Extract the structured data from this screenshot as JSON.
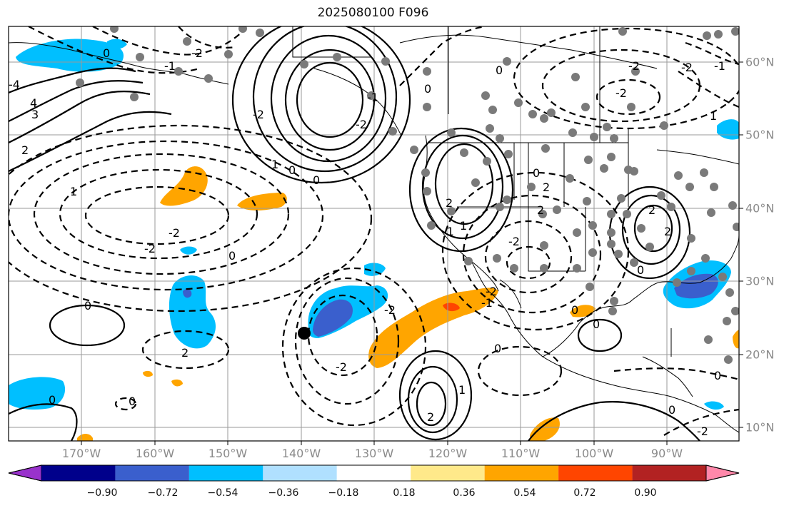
{
  "title": "2025080100 F096",
  "longitude_labels": [
    "170°W",
    "160°W",
    "150°W",
    "140°W",
    "130°W",
    "120°W",
    "110°W",
    "100°W",
    "90°W"
  ],
  "latitude_labels": [
    "60°N",
    "50°N",
    "40°N",
    "30°N",
    "20°N",
    "10°N"
  ],
  "colorbar": {
    "tick_labels": [
      "−0.90",
      "−0.72",
      "−0.54",
      "−0.36",
      "−0.18",
      "0.18",
      "0.36",
      "0.54",
      "0.72",
      "0.90"
    ],
    "colors": [
      "#9932cc",
      "#00008b",
      "#3a5fcd",
      "#00bfff",
      "#b0e0ff",
      "#ffffff",
      "#ffe98a",
      "#ffa500",
      "#ff4500",
      "#b22222",
      "#ff88aa"
    ]
  },
  "contour_labels": [
    "0",
    "-1",
    "-2",
    "1",
    "2",
    "3",
    "4",
    "-4",
    "-2",
    "0",
    "1",
    "-2",
    "0",
    "-2",
    "-2",
    "-1",
    "0",
    "0",
    "2",
    "0",
    "-2",
    "1",
    "-1",
    "2",
    "-2",
    "0",
    "2",
    "-1",
    "-2",
    "0",
    "0",
    "-2",
    "-2",
    "2",
    "0",
    "0",
    "1",
    "-2",
    "2",
    "2",
    "-1",
    "0",
    "1",
    "0",
    "0",
    "-2",
    "-2",
    "2",
    "0",
    "0"
  ]
}
